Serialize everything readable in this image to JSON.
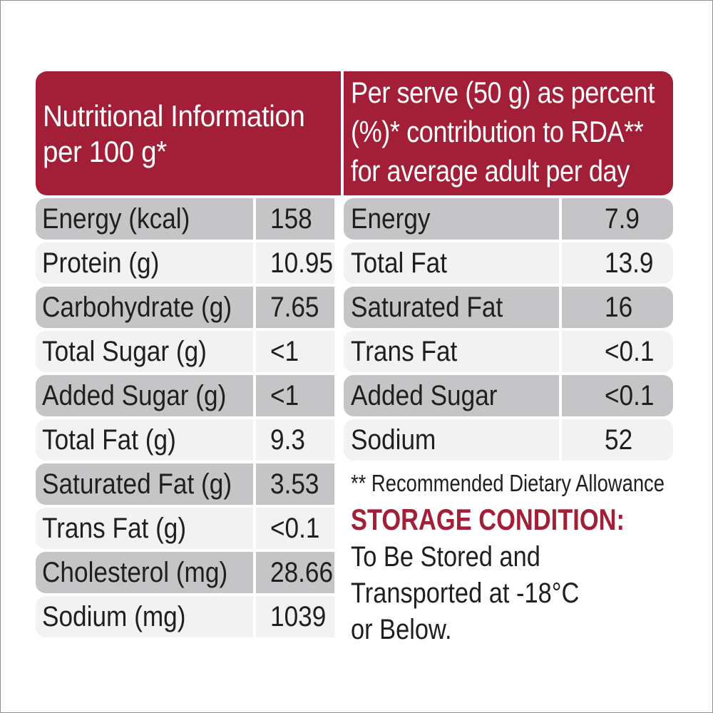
{
  "header": {
    "left_lines": [
      "Nutritional Information",
      "per 100 g*"
    ],
    "right_lines": [
      "Per serve (50 g) as percent",
      "(%)* contribution to RDA**",
      "for average adult per day"
    ]
  },
  "per_100g": [
    {
      "name": "Energy (kcal)",
      "value": "158"
    },
    {
      "name": "Protein (g)",
      "value": "10.95"
    },
    {
      "name": "Carbohydrate (g)",
      "value": "7.65"
    },
    {
      "name": "Total Sugar (g)",
      "value": "<1"
    },
    {
      "name": "Added Sugar (g)",
      "value": "<1"
    },
    {
      "name": "Total Fat (g)",
      "value": "9.3"
    },
    {
      "name": "Saturated Fat (g)",
      "value": "3.53"
    },
    {
      "name": "Trans Fat (g)",
      "value": "<0.1"
    },
    {
      "name": "Cholesterol (mg)",
      "value": "28.66"
    },
    {
      "name": "Sodium (mg)",
      "value": "1039"
    }
  ],
  "rda_percent": [
    {
      "name": "Energy",
      "value": "7.9"
    },
    {
      "name": "Total Fat",
      "value": "13.9"
    },
    {
      "name": "Saturated Fat",
      "value": "16"
    },
    {
      "name": "Trans Fat",
      "value": "<0.1"
    },
    {
      "name": "Added Sugar",
      "value": "<0.1"
    },
    {
      "name": "Sodium",
      "value": "52"
    }
  ],
  "footnote": "** Recommended Dietary Allowance",
  "storage": {
    "title": "STORAGE CONDITION:",
    "lines": [
      "To Be Stored and",
      "Transported at -18°C",
      "or Below."
    ]
  },
  "colors": {
    "header_red": "#a31f37",
    "row_dark": "#c5c5c7",
    "row_light": "#f2f2f3"
  }
}
